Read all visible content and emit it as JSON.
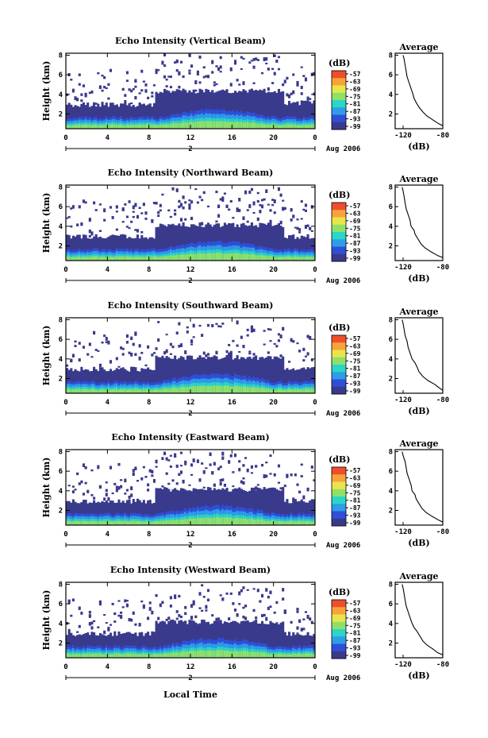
{
  "colorbar": {
    "unit": "(dB)",
    "ticks": [
      "-57",
      "-63",
      "-69",
      "-75",
      "-81",
      "-87",
      "-93",
      "-99"
    ],
    "colors": [
      "#f04e2a",
      "#f7a33a",
      "#e8e54a",
      "#8fe06a",
      "#2bd6c6",
      "#2e9de8",
      "#2f4fd8",
      "#3a3a8c"
    ]
  },
  "shared": {
    "date_label": "2",
    "month_label": "Aug 2006",
    "xlabel": "Local Time",
    "ylabel": "Height (km)",
    "avg_title": "Average",
    "avg_xlabel": "(dB)"
  },
  "chart_data": [
    {
      "type": "heatmap",
      "title": "Echo Intensity (Vertical Beam)",
      "x_ticks": [
        "0",
        "4",
        "8",
        "12",
        "16",
        "20",
        "0"
      ],
      "y_ticks": [
        "2",
        "4",
        "6",
        "8"
      ],
      "xlim": [
        0,
        24
      ],
      "ylim": [
        0.5,
        8.2
      ],
      "profile": {
        "title": "Average",
        "x_ticks": [
          "-120",
          "-80"
        ],
        "y_ticks": [
          "2",
          "4",
          "6",
          "8"
        ],
        "x": [
          -80,
          -84,
          -90,
          -96,
          -100,
          -104,
          -107,
          -109,
          -110,
          -112,
          -114,
          -116,
          -117,
          -118,
          -119,
          -120
        ],
        "y": [
          0.8,
          1.0,
          1.4,
          1.8,
          2.2,
          2.7,
          3.2,
          3.6,
          4.0,
          4.6,
          5.2,
          5.8,
          6.4,
          7.0,
          7.6,
          8.0
        ]
      }
    },
    {
      "type": "heatmap",
      "title": "Echo Intensity (Northward Beam)",
      "x_ticks": [
        "0",
        "4",
        "8",
        "12",
        "16",
        "20",
        "0"
      ],
      "y_ticks": [
        "2",
        "4",
        "6",
        "8"
      ],
      "xlim": [
        0,
        24
      ],
      "ylim": [
        0.5,
        8.2
      ],
      "profile": {
        "title": "Average",
        "x_ticks": [
          "-120",
          "-80"
        ],
        "y_ticks": [
          "2",
          "4",
          "6",
          "8"
        ],
        "x": [
          -80,
          -85,
          -92,
          -98,
          -102,
          -105,
          -108,
          -109,
          -112,
          -113,
          -115,
          -117,
          -118,
          -119,
          -120,
          -121
        ],
        "y": [
          0.8,
          1.0,
          1.4,
          1.8,
          2.2,
          2.7,
          3.2,
          3.6,
          4.0,
          4.6,
          5.2,
          5.8,
          6.4,
          7.0,
          7.6,
          8.0
        ]
      }
    },
    {
      "type": "heatmap",
      "title": "Echo Intensity (Southward Beam)",
      "x_ticks": [
        "0",
        "4",
        "8",
        "12",
        "16",
        "20",
        "0"
      ],
      "y_ticks": [
        "2",
        "4",
        "6",
        "8"
      ],
      "xlim": [
        0,
        24
      ],
      "ylim": [
        0.5,
        8.2
      ],
      "profile": {
        "title": "Average",
        "x_ticks": [
          "-120",
          "-80"
        ],
        "y_ticks": [
          "2",
          "4",
          "6",
          "8"
        ],
        "x": [
          -80,
          -83,
          -88,
          -95,
          -100,
          -104,
          -106,
          -108,
          -111,
          -113,
          -115,
          -116,
          -118,
          -119,
          -120,
          -121
        ],
        "y": [
          0.8,
          1.0,
          1.4,
          1.8,
          2.2,
          2.7,
          3.2,
          3.6,
          4.0,
          4.6,
          5.2,
          5.8,
          6.4,
          7.0,
          7.6,
          8.0
        ]
      }
    },
    {
      "type": "heatmap",
      "title": "Echo Intensity (Eastward Beam)",
      "x_ticks": [
        "0",
        "4",
        "8",
        "12",
        "16",
        "20",
        "0"
      ],
      "y_ticks": [
        "2",
        "4",
        "6",
        "8"
      ],
      "xlim": [
        0,
        24
      ],
      "ylim": [
        0.5,
        8.2
      ],
      "profile": {
        "title": "Average",
        "x_ticks": [
          "-120",
          "-80"
        ],
        "y_ticks": [
          "2",
          "4",
          "6",
          "8"
        ],
        "x": [
          -80,
          -84,
          -91,
          -97,
          -101,
          -104,
          -107,
          -108,
          -111,
          -112,
          -114,
          -116,
          -117,
          -118,
          -120,
          -121
        ],
        "y": [
          0.8,
          1.0,
          1.4,
          1.8,
          2.2,
          2.7,
          3.2,
          3.6,
          4.0,
          4.6,
          5.2,
          5.8,
          6.4,
          7.0,
          7.6,
          8.0
        ]
      }
    },
    {
      "type": "heatmap",
      "title": "Echo Intensity (Westward Beam)",
      "x_ticks": [
        "0",
        "4",
        "8",
        "12",
        "16",
        "20",
        "0"
      ],
      "y_ticks": [
        "2",
        "4",
        "6",
        "8"
      ],
      "xlim": [
        0,
        24
      ],
      "ylim": [
        0.5,
        8.2
      ],
      "profile": {
        "title": "Average",
        "x_ticks": [
          "-120",
          "-80"
        ],
        "y_ticks": [
          "2",
          "4",
          "6",
          "8"
        ],
        "x": [
          -80,
          -85,
          -90,
          -96,
          -100,
          -103,
          -106,
          -109,
          -111,
          -113,
          -115,
          -117,
          -118,
          -119,
          -120,
          -121
        ],
        "y": [
          0.8,
          1.0,
          1.4,
          1.8,
          2.2,
          2.7,
          3.2,
          3.6,
          4.0,
          4.6,
          5.2,
          5.8,
          6.4,
          7.0,
          7.6,
          8.0
        ]
      }
    }
  ]
}
